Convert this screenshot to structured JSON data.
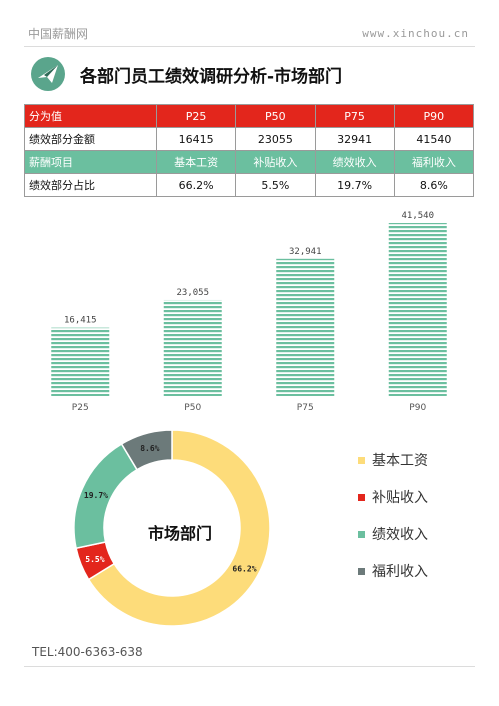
{
  "header": {
    "site_name": "中国薪酬网",
    "url": "www.xinchou.cn"
  },
  "page_title": "各部门员工绩效调研分析-市场部门",
  "table": {
    "row1": {
      "label": "分为值",
      "cells": [
        "P25",
        "P50",
        "P75",
        "P90"
      ]
    },
    "row2": {
      "label": "绩效部分金额",
      "cells": [
        "16415",
        "23055",
        "32941",
        "41540"
      ]
    },
    "row3": {
      "label": "薪酬项目",
      "cells": [
        "基本工资",
        "补贴收入",
        "绩效收入",
        "福利收入"
      ]
    },
    "row4": {
      "label": "绩效部分占比",
      "cells": [
        "66.2%",
        "5.5%",
        "19.7%",
        "8.6%"
      ]
    }
  },
  "chart_data": [
    {
      "type": "bar",
      "categories": [
        "P25",
        "P50",
        "P75",
        "P90"
      ],
      "values": [
        16415,
        23055,
        32941,
        41540
      ],
      "value_labels": [
        "16,415",
        "23,055",
        "32,941",
        "41,540"
      ],
      "bar_color": "#6bbf9f"
    },
    {
      "type": "pie",
      "center_label": "市场部门",
      "labels": [
        "基本工资",
        "补贴收入",
        "绩效收入",
        "福利收入"
      ],
      "values": [
        66.2,
        5.5,
        19.7,
        8.6
      ],
      "value_labels": [
        "66.2%",
        "5.5%",
        "19.7%",
        "8.6%"
      ],
      "colors": [
        "#fddc7a",
        "#e3261c",
        "#6bbf9f",
        "#6c7a7a"
      ]
    }
  ],
  "legend": [
    {
      "label": "基本工资",
      "color": "#fddc7a"
    },
    {
      "label": "补贴收入",
      "color": "#e3261c"
    },
    {
      "label": "绩效收入",
      "color": "#6bbf9f"
    },
    {
      "label": "福利收入",
      "color": "#6c7a7a"
    }
  ],
  "footer": {
    "tel": "TEL:400-6363-638"
  },
  "logo_icon": "paper-plane-icon",
  "accent": "#e3261c"
}
